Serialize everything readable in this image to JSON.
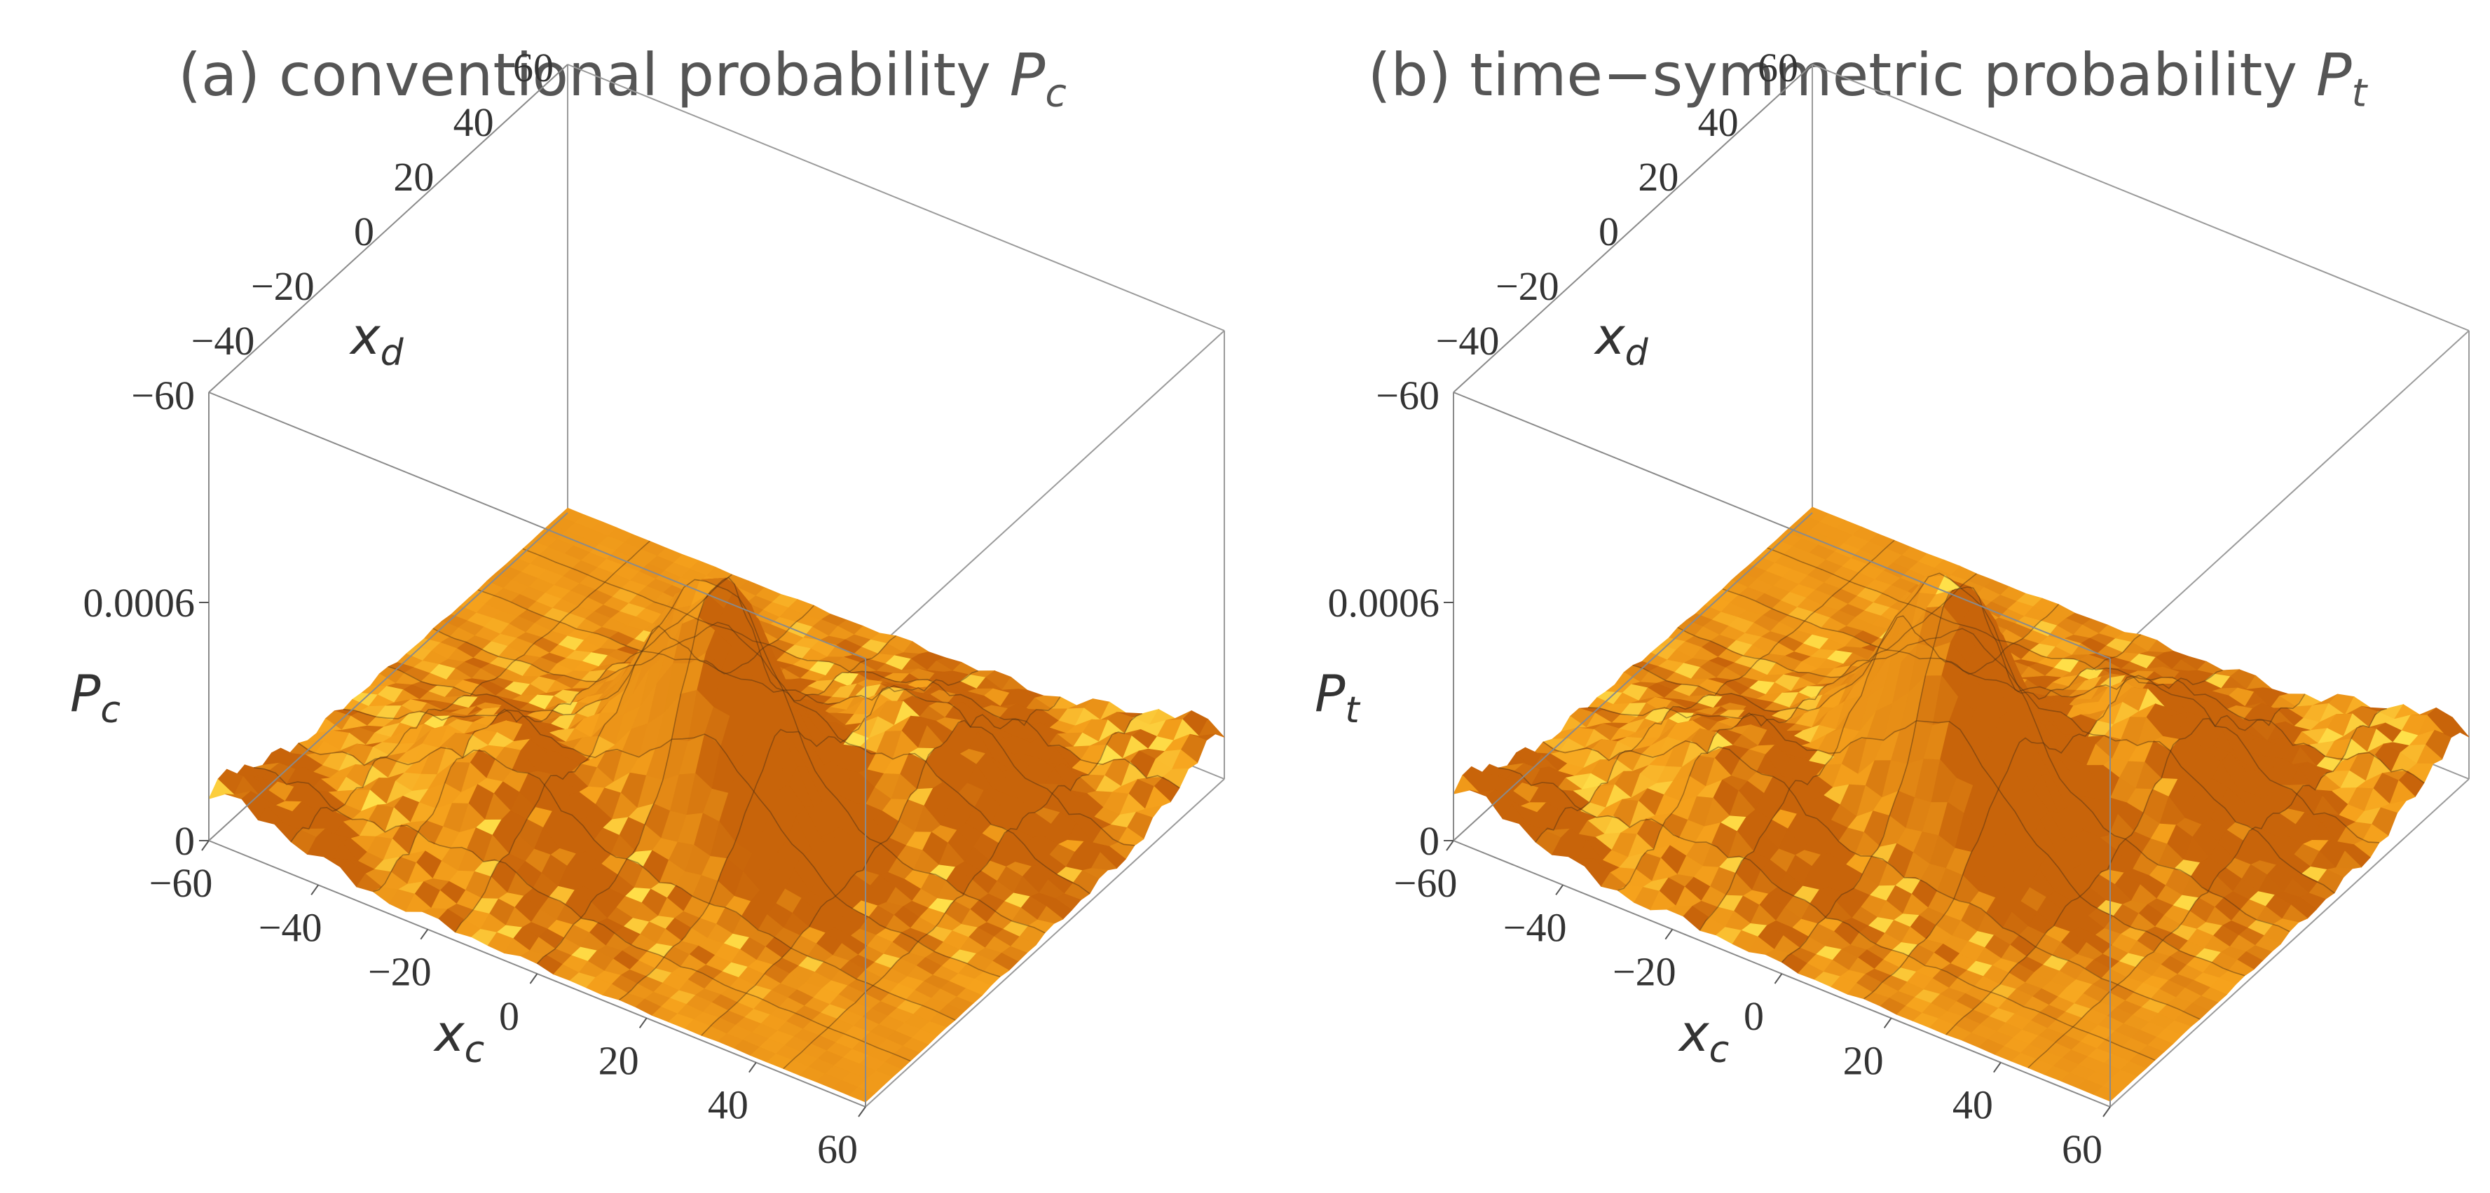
{
  "panels": [
    {
      "id": "a",
      "title_text": "(a) conventional probability ",
      "title_symbol": "P",
      "title_subscript": "c",
      "zlabel_symbol": "P",
      "zlabel_subscript": "c"
    },
    {
      "id": "b",
      "title_text": "(b) time−symmetric probability ",
      "title_symbol": "P",
      "title_subscript": "t",
      "zlabel_symbol": "P",
      "zlabel_subscript": "t"
    }
  ],
  "axes": {
    "x_symbol": "x",
    "x_subscript": "c",
    "y_symbol": "x",
    "y_subscript": "d",
    "x_ticks": [
      "−60",
      "−40",
      "−20",
      "0",
      "20",
      "40",
      "60"
    ],
    "y_ticks": [
      "−60",
      "−40",
      "−20",
      "0",
      "20",
      "40",
      "60"
    ],
    "z_ticks": [
      "0",
      "0.0006"
    ]
  },
  "chart_data": [
    {
      "type": "surface3d",
      "title": "(a) conventional probability P_c",
      "xlabel": "x_c",
      "ylabel": "x_d",
      "zlabel": "P_c",
      "xlim": [
        -60,
        60
      ],
      "ylim": [
        -60,
        60
      ],
      "zlim": [
        0,
        0.0006
      ],
      "x_ticks": [
        -60,
        -40,
        -20,
        0,
        20,
        40,
        60
      ],
      "y_ticks": [
        -60,
        -40,
        -20,
        0,
        20,
        40,
        60
      ],
      "z_ticks": [
        0,
        0.0006
      ],
      "surface_color": "#f6a21c",
      "highlight_color": "#ffe14a",
      "shadow_color": "#c8640a"
    },
    {
      "type": "surface3d",
      "title": "(b) time-symmetric probability P_t",
      "xlabel": "x_c",
      "ylabel": "x_d",
      "zlabel": "P_t",
      "xlim": [
        -60,
        60
      ],
      "ylim": [
        -60,
        60
      ],
      "zlim": [
        0,
        0.0006
      ],
      "x_ticks": [
        -60,
        -40,
        -20,
        0,
        20,
        40,
        60
      ],
      "y_ticks": [
        -60,
        -40,
        -20,
        0,
        20,
        40,
        60
      ],
      "z_ticks": [
        0,
        0.0006
      ],
      "surface_color": "#f6a21c",
      "highlight_color": "#ffe14a",
      "shadow_color": "#c8640a"
    }
  ]
}
